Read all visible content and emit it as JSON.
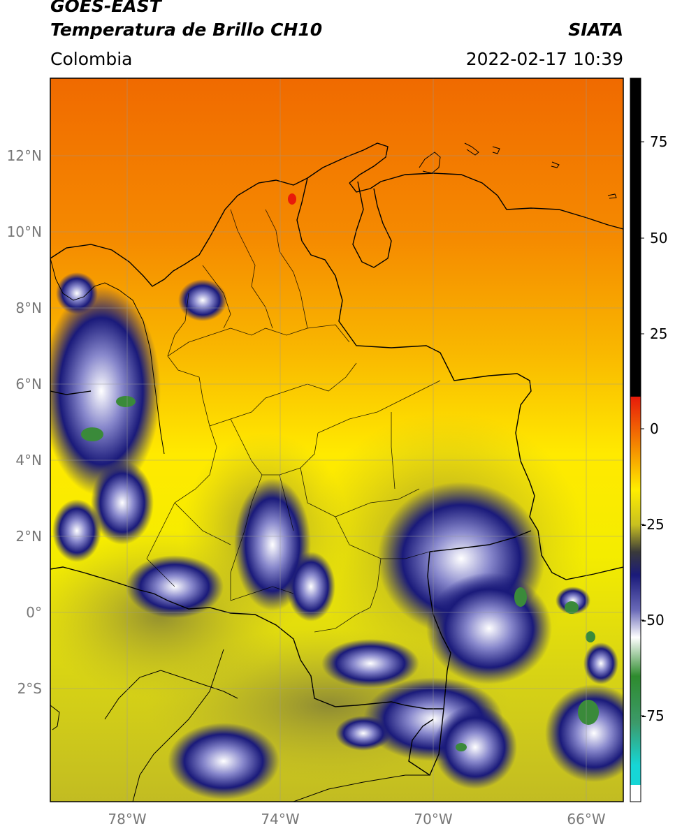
{
  "header": {
    "satellite": "GOES-EAST",
    "product": "Temperatura de Brillo CH10",
    "region": "Colombia",
    "agency": "SIATA",
    "datetime": "2022-02-17 10:39"
  },
  "map": {
    "lat_labels": [
      "12°N",
      "10°N",
      "8°N",
      "6°N",
      "4°N",
      "2°N",
      "0°",
      "2°S"
    ],
    "lon_labels": [
      "78°W",
      "74°W",
      "70°W",
      "66°W"
    ],
    "grid": true
  },
  "colorbar": {
    "ticks": [
      "75",
      "50",
      "25",
      "0",
      "-25",
      "-50",
      "-75"
    ],
    "colors": {
      "hot": "#000000",
      "red": "#e81a0a",
      "orange": "#f5a000",
      "yellow": "#ffee00",
      "olive": "#b8b030",
      "navy": "#1a1a7a",
      "white": "#ffffff",
      "green": "#2e8b2e",
      "cyan": "#16d6d6"
    }
  }
}
